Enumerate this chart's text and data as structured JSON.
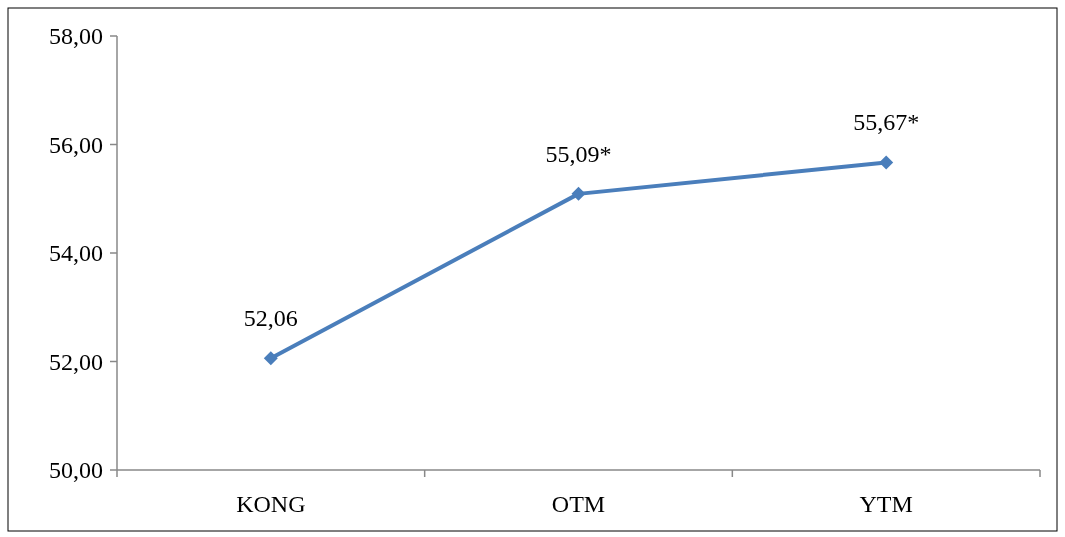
{
  "chart_data": {
    "type": "line",
    "categories": [
      "KONG",
      "OTM",
      "YTM"
    ],
    "series": [
      {
        "color": "#4a7ebb",
        "values": [
          52.06,
          55.09,
          55.67
        ],
        "value_labels": [
          "52,06",
          "55,09*",
          "55,67*"
        ]
      }
    ],
    "ylim": [
      50,
      58
    ],
    "yticks": [
      {
        "value": 50,
        "label": "50,00"
      },
      {
        "value": 52,
        "label": "52,00"
      },
      {
        "value": 54,
        "label": "54,00"
      },
      {
        "value": 56,
        "label": "56,00"
      },
      {
        "value": 58,
        "label": "58,00"
      }
    ],
    "grid": false,
    "marker": "diamond",
    "line_style": "solid"
  }
}
